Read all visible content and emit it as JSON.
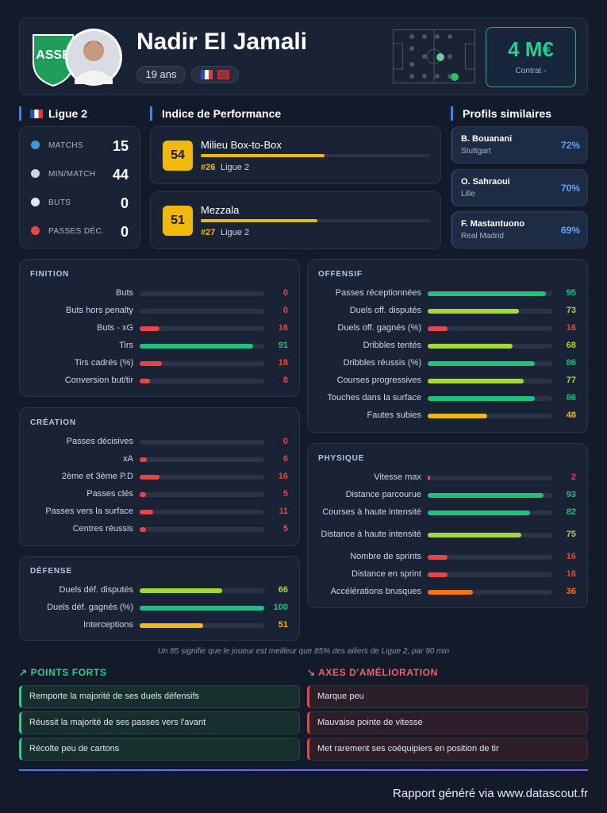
{
  "header": {
    "name": "Nadir El Jamali",
    "age": "19 ans",
    "value": "4 M€",
    "contract": "Contrat -"
  },
  "league": {
    "title": "Ligue 2",
    "stats": [
      {
        "label": "MATCHS",
        "value": 15
      },
      {
        "label": "MIN/MATCH",
        "value": 44
      },
      {
        "label": "BUTS",
        "value": 0
      },
      {
        "label": "PASSES DÉC.",
        "value": 0
      }
    ]
  },
  "performance": {
    "title": "Indice de Performance",
    "roles": [
      {
        "score": 54,
        "role": "Milieu Box-to-Box",
        "rank": "#26",
        "league": "Ligue 2"
      },
      {
        "score": 51,
        "role": "Mezzala",
        "rank": "#27",
        "league": "Ligue 2"
      }
    ]
  },
  "similar": {
    "title": "Profils similaires",
    "players": [
      {
        "name": "B. Bouanani",
        "club": "Stuttgart",
        "similarity": "72%"
      },
      {
        "name": "O. Sahraoui",
        "club": "Lille",
        "similarity": "70%"
      },
      {
        "name": "F. Mastantuono",
        "club": "Real Madrid",
        "similarity": "69%"
      }
    ]
  },
  "sections": [
    {
      "title": "FINITION",
      "rows": [
        {
          "label": "Buts",
          "value": 0
        },
        {
          "label": "Buts hors penalty",
          "value": 0
        },
        {
          "label": "Buts - xG",
          "value": 16
        },
        {
          "label": "Tirs",
          "value": 91
        },
        {
          "label": "Tirs cadrés (%)",
          "value": 18
        },
        {
          "label": "Conversion but/tir",
          "value": 8
        }
      ]
    },
    {
      "title": "CRÉATION",
      "rows": [
        {
          "label": "Passes décisives",
          "value": 0
        },
        {
          "label": "xA",
          "value": 6
        },
        {
          "label": "2ème et 3ème P.D",
          "value": 16
        },
        {
          "label": "Passes clés",
          "value": 5
        },
        {
          "label": "Passes vers la surface",
          "value": 11
        },
        {
          "label": "Centres réussis",
          "value": 5
        }
      ]
    },
    {
      "title": "DÉFENSE",
      "rows": [
        {
          "label": "Duels déf. disputés",
          "value": 66
        },
        {
          "label": "Duels déf. gagnés (%)",
          "value": 100
        },
        {
          "label": "Interceptions",
          "value": 51
        }
      ]
    },
    {
      "title": "OFFENSIF",
      "rows": [
        {
          "label": "Passes réceptionnées",
          "value": 95
        },
        {
          "label": "Duels off. disputés",
          "value": 73
        },
        {
          "label": "Duels off. gagnés (%)",
          "value": 16
        },
        {
          "label": "Dribbles tentés",
          "value": 68
        },
        {
          "label": "Dribbles réussis (%)",
          "value": 86
        },
        {
          "label": "Courses progressives",
          "value": 77
        },
        {
          "label": "Touches dans la surface",
          "value": 86
        },
        {
          "label": "Fautes subies",
          "value": 48
        }
      ]
    },
    {
      "title": "PHYSIQUE",
      "rows": [
        {
          "label": "Vitesse max",
          "value": 2
        },
        {
          "label": "Distance parcourue",
          "value": 93
        },
        {
          "label": "Courses à haute intensité",
          "value": 82
        },
        {
          "label": "Distance à haute intensité",
          "value": 75
        },
        {
          "label": "Nombre de sprints",
          "value": 16
        },
        {
          "label": "Distance en sprint",
          "value": 16
        },
        {
          "label": "Accélérations brusques",
          "value": 36
        }
      ]
    }
  ],
  "note": "Un 85 signifie que le joueur est meilleur que 85% des ailiers de Ligue 2, par 90 min",
  "strengths": {
    "title": "POINTS FORTS",
    "items": [
      "Remporte la majorité de ses duels défensifs",
      "Réussit la majorité de ses passes vers l'avant",
      "Récolte peu de cartons"
    ]
  },
  "improvements": {
    "title": "AXES D'AMÉLIORATION",
    "items": [
      "Marque peu",
      "Mauvaise pointe de vitesse",
      "Met rarement ses coéquipiers en position de tir"
    ]
  },
  "footer": "Rapport généré via www.datascout.fr"
}
